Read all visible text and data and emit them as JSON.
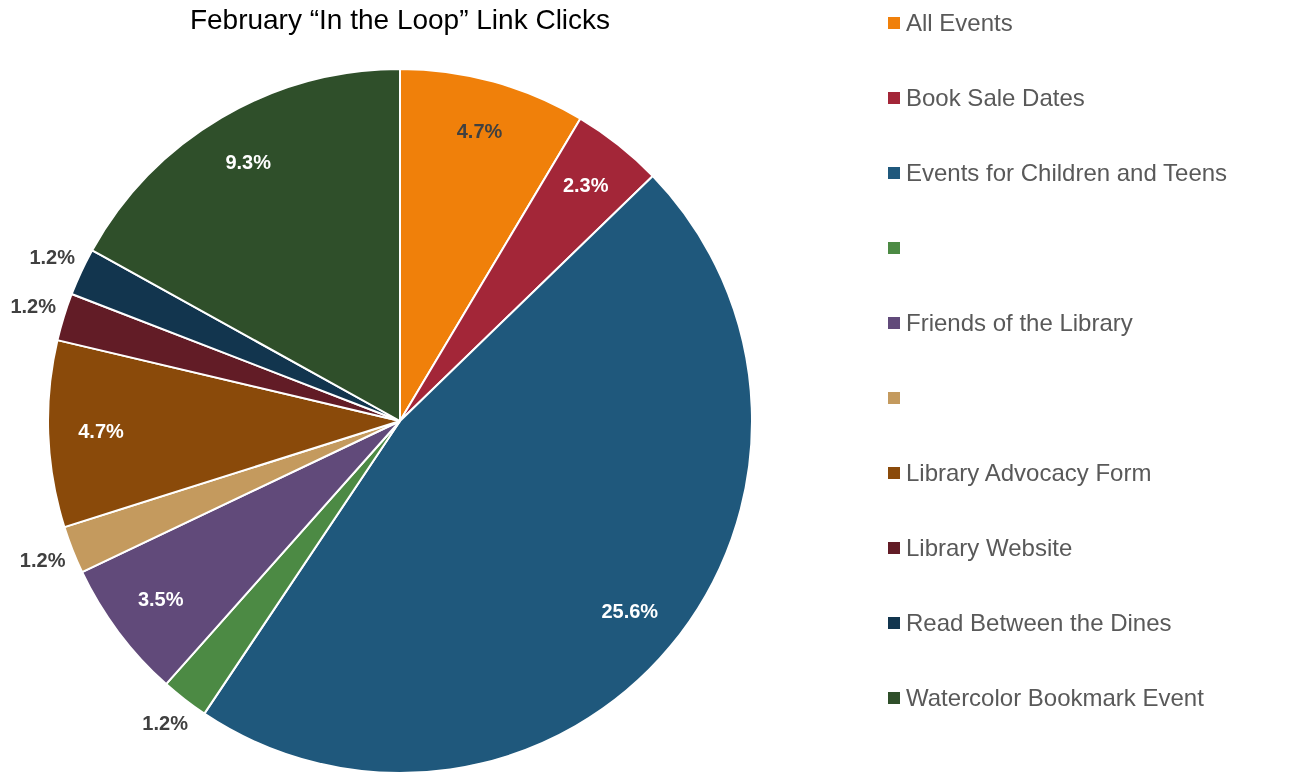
{
  "chart_data": {
    "type": "pie",
    "title": "February “In the Loop” Link Clicks",
    "categories": [
      "All Events",
      "Book Sale Dates",
      "Events for Children and Teens",
      null,
      "Friends of the Library",
      null,
      "Library Advocacy Form",
      "Library Website",
      "Read Between the Dines",
      "Watercolor Bookmark Event"
    ],
    "values": [
      4.7,
      2.3,
      25.6,
      1.2,
      3.5,
      1.2,
      4.7,
      1.2,
      1.2,
      9.3
    ],
    "value_labels": [
      "4.7%",
      "2.3%",
      "25.6%",
      "1.2%",
      "3.5%",
      "1.2%",
      "4.7%",
      "1.2%",
      "1.2%",
      "9.3%"
    ],
    "colors": [
      "#f0800a",
      "#a32638",
      "#1f587c",
      "#4c8a44",
      "#614a7a",
      "#c49a5e",
      "#8a4a0a",
      "#621c26",
      "#12354e",
      "#2f4f2a"
    ],
    "legend": "right"
  }
}
